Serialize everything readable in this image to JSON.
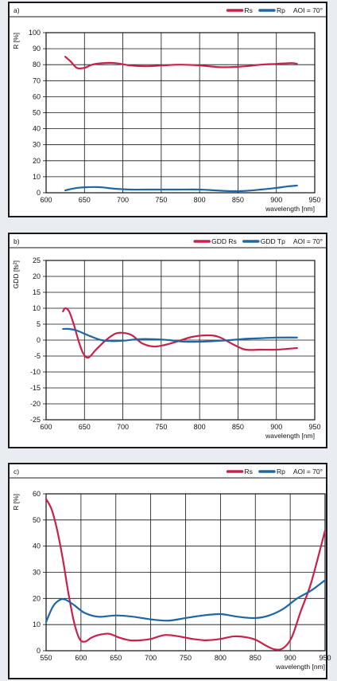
{
  "colors": {
    "rs": "#c8214a",
    "tp": "#1f66a4",
    "grid": "#111111",
    "frame": "#1a1a1a"
  },
  "chart_data": [
    {
      "type": "line",
      "panel_label": "a)",
      "aoi": "AOI = 70°",
      "ylabel": "R [%]",
      "xlabel": "wavelength [nm]",
      "xlim": [
        600,
        950
      ],
      "ylim": [
        0,
        100
      ],
      "x_ticks": [
        600,
        650,
        700,
        750,
        800,
        850,
        900,
        950
      ],
      "y_ticks": [
        0,
        10,
        20,
        30,
        40,
        50,
        60,
        70,
        80,
        90,
        100
      ],
      "grid": true,
      "legend_position": "top-right",
      "series": [
        {
          "name": "Rs",
          "color": "#c8214a",
          "x": [
            625,
            632,
            640,
            650,
            660,
            675,
            690,
            710,
            730,
            750,
            775,
            800,
            825,
            840,
            860,
            880,
            900,
            920,
            927
          ],
          "y": [
            85,
            82,
            78,
            78,
            80,
            81,
            81,
            79.5,
            79,
            79.5,
            80,
            79.5,
            78.5,
            78.5,
            79,
            80,
            80.5,
            81,
            80.5
          ]
        },
        {
          "name": "Rp",
          "color": "#1f66a4",
          "x": [
            625,
            640,
            655,
            670,
            690,
            710,
            740,
            770,
            800,
            820,
            840,
            860,
            880,
            900,
            915,
            927
          ],
          "y": [
            1.5,
            3,
            3.5,
            3.5,
            2.5,
            2,
            2,
            2,
            2,
            1.5,
            1,
            1.2,
            2,
            3,
            4,
            4.5
          ]
        }
      ]
    },
    {
      "type": "line",
      "panel_label": "b)",
      "aoi": "AOI = 70°",
      "ylabel": "GDD [fs²]",
      "xlabel": "wavelength [nm]",
      "xlim": [
        600,
        950
      ],
      "ylim": [
        -25,
        25
      ],
      "x_ticks": [
        600,
        650,
        700,
        750,
        800,
        850,
        900,
        950
      ],
      "y_ticks": [
        -25,
        -20,
        -15,
        -10,
        -5,
        0,
        5,
        10,
        15,
        20,
        25
      ],
      "grid": true,
      "legend_position": "top-right",
      "series": [
        {
          "name": "GDD Rs",
          "color": "#c8214a",
          "x": [
            622,
            625,
            630,
            636,
            642,
            648,
            655,
            665,
            678,
            690,
            700,
            712,
            725,
            740,
            755,
            770,
            790,
            810,
            825,
            845,
            860,
            880,
            900,
            927
          ],
          "y": [
            9,
            10,
            9,
            5,
            0,
            -4,
            -5.5,
            -3,
            0,
            2,
            2.3,
            1.5,
            -1,
            -2,
            -1.5,
            -0.5,
            1,
            1.5,
            1,
            -1.5,
            -3,
            -3,
            -3,
            -2.5
          ]
        },
        {
          "name": "GDD Tp",
          "color": "#1f66a4",
          "x": [
            622,
            630,
            640,
            650,
            660,
            672,
            685,
            700,
            720,
            740,
            760,
            780,
            800,
            820,
            840,
            860,
            880,
            900,
            927
          ],
          "y": [
            3.5,
            3.5,
            3,
            2,
            1,
            0,
            -0.3,
            -0.2,
            0.3,
            0.3,
            0,
            -0.5,
            -0.5,
            -0.3,
            0,
            0.4,
            0.6,
            0.8,
            0.8
          ]
        }
      ]
    },
    {
      "type": "line",
      "panel_label": "c)",
      "aoi": "AOI = 70°",
      "ylabel": "R [%]",
      "xlabel": "wavelength [nm]",
      "xlim": [
        550,
        950
      ],
      "ylim": [
        0,
        60
      ],
      "x_ticks": [
        550,
        600,
        650,
        700,
        750,
        800,
        850,
        900,
        950
      ],
      "y_ticks": [
        0,
        10,
        20,
        30,
        40,
        50,
        60
      ],
      "grid": true,
      "legend_position": "top-right",
      "series": [
        {
          "name": "Rs",
          "color": "#c8214a",
          "x": [
            550,
            558,
            566,
            574,
            582,
            590,
            598,
            606,
            615,
            625,
            640,
            655,
            670,
            685,
            700,
            720,
            740,
            760,
            780,
            800,
            820,
            840,
            852,
            865,
            878,
            890,
            902,
            915,
            930,
            950
          ],
          "y": [
            58,
            54,
            46,
            35,
            22,
            11,
            4.5,
            3.5,
            5,
            6,
            6.5,
            5,
            4,
            4,
            4.5,
            6,
            5.5,
            4.5,
            4,
            4.5,
            5.5,
            5,
            4,
            2,
            0.5,
            1,
            5,
            15,
            26,
            46
          ]
        },
        {
          "name": "Rp",
          "color": "#1f66a4",
          "x": [
            550,
            560,
            570,
            578,
            590,
            605,
            625,
            650,
            675,
            700,
            725,
            750,
            775,
            800,
            825,
            850,
            870,
            890,
            910,
            930,
            950
          ],
          "y": [
            11,
            17,
            19.5,
            19.5,
            17.5,
            14.5,
            13,
            13.5,
            13,
            12,
            11.5,
            12.5,
            13.5,
            14,
            13,
            12.5,
            13.5,
            16,
            20,
            23,
            27
          ]
        }
      ]
    }
  ]
}
